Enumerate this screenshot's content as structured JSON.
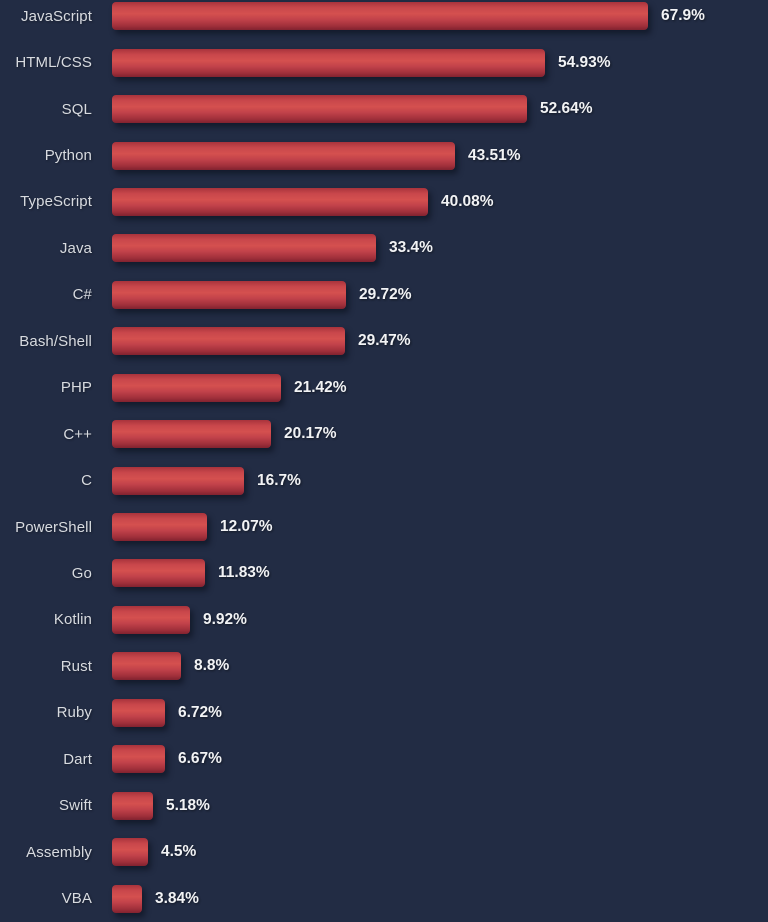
{
  "chart_data": {
    "type": "bar",
    "orientation": "horizontal",
    "title": "",
    "categories": [
      "JavaScript",
      "HTML/CSS",
      "SQL",
      "Python",
      "TypeScript",
      "Java",
      "C#",
      "Bash/Shell",
      "PHP",
      "C++",
      "C",
      "PowerShell",
      "Go",
      "Kotlin",
      "Rust",
      "Ruby",
      "Dart",
      "Swift",
      "Assembly",
      "VBA"
    ],
    "values": [
      67.9,
      54.93,
      52.64,
      43.51,
      40.08,
      33.4,
      29.72,
      29.47,
      21.42,
      20.17,
      16.7,
      12.07,
      11.83,
      9.92,
      8.8,
      6.72,
      6.67,
      5.18,
      4.5,
      3.84
    ],
    "value_labels": [
      "67.9%",
      "54.93%",
      "52.64%",
      "43.51%",
      "40.08%",
      "33.4%",
      "29.72%",
      "29.47%",
      "21.42%",
      "20.17%",
      "16.7%",
      "12.07%",
      "11.83%",
      "9.92%",
      "8.8%",
      "6.72%",
      "6.67%",
      "5.18%",
      "4.5%",
      "3.84%"
    ],
    "xlabel": "",
    "ylabel": "",
    "xlim": [
      0,
      83
    ],
    "grid": false,
    "legend": false,
    "colors": {
      "background": "#222c44",
      "bar_top": "#a8333c",
      "bar_mid": "#d4504f",
      "bar_bottom": "#81222f",
      "label_text": "#d8dbe0",
      "value_text": "#f2f3f5"
    }
  }
}
